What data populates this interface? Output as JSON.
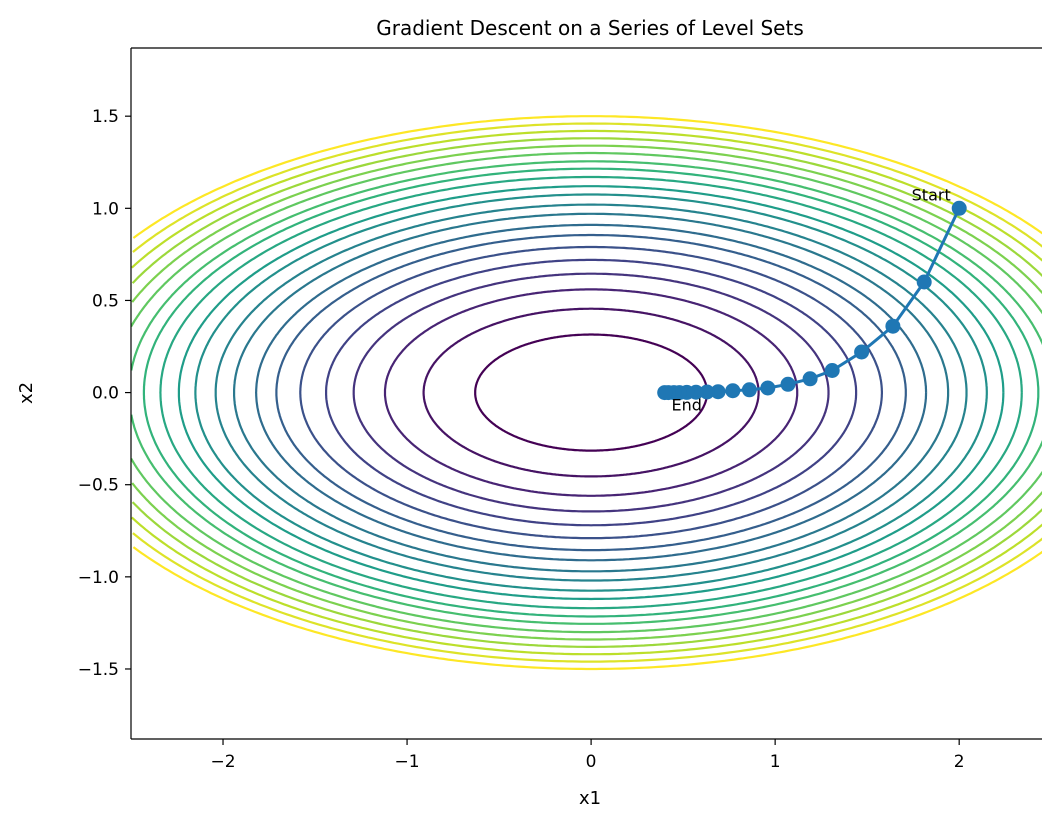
{
  "chart_data": {
    "type": "contour",
    "title": "Gradient Descent on a Series of Level Sets",
    "xlabel": "x1",
    "ylabel": "x2",
    "xlim": [
      -2.5,
      2.45
    ],
    "ylim": [
      -1.88,
      1.87
    ],
    "x_ticks": [
      -2,
      -1,
      0,
      1,
      2
    ],
    "x_tick_labels": [
      "−2",
      "−1",
      "0",
      "1",
      "2"
    ],
    "y_ticks": [
      -1.5,
      -1.0,
      -0.5,
      0.0,
      0.5,
      1.0,
      1.5
    ],
    "y_tick_labels": [
      "−1.5",
      "−1.0",
      "−0.5",
      "0.0",
      "0.5",
      "1.0",
      "1.5"
    ],
    "grid": false,
    "contour": {
      "function": "x1^2 + 4*x2^2",
      "level_radii": [
        0.63,
        0.91,
        1.12,
        1.29,
        1.44,
        1.58,
        1.71,
        1.82,
        1.94,
        2.04,
        2.15,
        2.24,
        2.34,
        2.43,
        2.51,
        2.6,
        2.68,
        2.76,
        2.84,
        2.92,
        3.0
      ],
      "x_range": [
        -2.5,
        2.5
      ],
      "y_range": [
        -1.5,
        1.5
      ],
      "colormap": [
        "#440154",
        "#482878",
        "#3e4989",
        "#31688e",
        "#26828e",
        "#1f9e89",
        "#35b779",
        "#6ece58",
        "#b5de2b",
        "#fde725"
      ]
    },
    "path": {
      "color": "#1f77b4",
      "points": [
        [
          2.0,
          1.0
        ],
        [
          1.81,
          0.6
        ],
        [
          1.64,
          0.36
        ],
        [
          1.47,
          0.22
        ],
        [
          1.31,
          0.12
        ],
        [
          1.19,
          0.075
        ],
        [
          1.07,
          0.045
        ],
        [
          0.96,
          0.025
        ],
        [
          0.86,
          0.015
        ],
        [
          0.77,
          0.01
        ],
        [
          0.69,
          0.005
        ],
        [
          0.63,
          0.003
        ],
        [
          0.57,
          0.002
        ],
        [
          0.52,
          0.001
        ],
        [
          0.48,
          0.0
        ],
        [
          0.45,
          0.0
        ],
        [
          0.42,
          0.0
        ],
        [
          0.4,
          0.0
        ]
      ]
    },
    "annotations": [
      {
        "text": "Start",
        "x": 2.0,
        "y": 1.0
      },
      {
        "text": "End",
        "x": 0.4,
        "y": 0.0
      }
    ]
  }
}
